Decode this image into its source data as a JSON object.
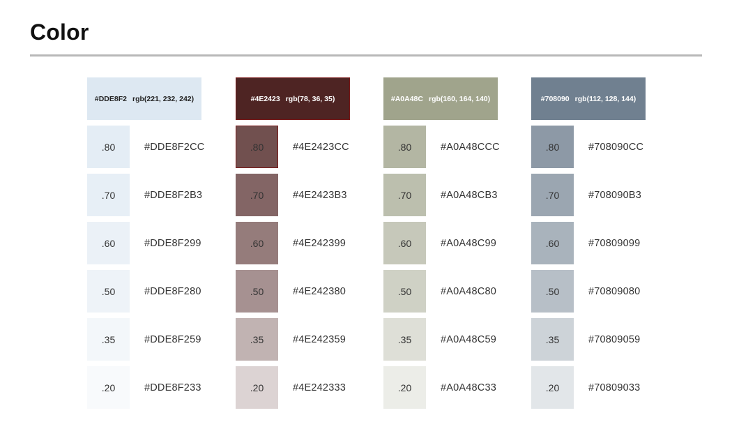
{
  "page": {
    "title": "Color"
  },
  "palettes": [
    {
      "hex": "#DDE8F2",
      "rgb": "rgb(221, 232, 242)",
      "color": "#DDE8F2",
      "header_text_color": "#222222",
      "swatches": [
        {
          "opacity_label": ".80",
          "opacity": 0.8,
          "hex": "#DDE8F2CC"
        },
        {
          "opacity_label": ".70",
          "opacity": 0.7,
          "hex": "#DDE8F2B3"
        },
        {
          "opacity_label": ".60",
          "opacity": 0.6,
          "hex": "#DDE8F299"
        },
        {
          "opacity_label": ".50",
          "opacity": 0.5,
          "hex": "#DDE8F280"
        },
        {
          "opacity_label": ".35",
          "opacity": 0.35,
          "hex": "#DDE8F259"
        },
        {
          "opacity_label": ".20",
          "opacity": 0.2,
          "hex": "#DDE8F233"
        }
      ]
    },
    {
      "hex": "#4E2423",
      "rgb": "rgb(78, 36, 35)",
      "color": "#4E2423",
      "header_text_color": "#ffffff",
      "swatches": [
        {
          "opacity_label": ".80",
          "opacity": 0.8,
          "hex": "#4E2423CC"
        },
        {
          "opacity_label": ".70",
          "opacity": 0.7,
          "hex": "#4E2423B3"
        },
        {
          "opacity_label": ".60",
          "opacity": 0.6,
          "hex": "#4E242399"
        },
        {
          "opacity_label": ".50",
          "opacity": 0.5,
          "hex": "#4E242380"
        },
        {
          "opacity_label": ".35",
          "opacity": 0.35,
          "hex": "#4E242359"
        },
        {
          "opacity_label": ".20",
          "opacity": 0.2,
          "hex": "#4E242333"
        }
      ]
    },
    {
      "hex": "#A0A48C",
      "rgb": "rgb(160, 164, 140)",
      "color": "#A0A48C",
      "header_text_color": "#ffffff",
      "swatches": [
        {
          "opacity_label": ".80",
          "opacity": 0.8,
          "hex": "#A0A48CCC"
        },
        {
          "opacity_label": ".70",
          "opacity": 0.7,
          "hex": "#A0A48CB3"
        },
        {
          "opacity_label": ".60",
          "opacity": 0.6,
          "hex": "#A0A48C99"
        },
        {
          "opacity_label": ".50",
          "opacity": 0.5,
          "hex": "#A0A48C80"
        },
        {
          "opacity_label": ".35",
          "opacity": 0.35,
          "hex": "#A0A48C59"
        },
        {
          "opacity_label": ".20",
          "opacity": 0.2,
          "hex": "#A0A48C33"
        }
      ]
    },
    {
      "hex": "#708090",
      "rgb": "rgb(112, 128, 144)",
      "color": "#708090",
      "header_text_color": "#ffffff",
      "swatches": [
        {
          "opacity_label": ".80",
          "opacity": 0.8,
          "hex": "#708090CC"
        },
        {
          "opacity_label": ".70",
          "opacity": 0.7,
          "hex": "#708090B3"
        },
        {
          "opacity_label": ".60",
          "opacity": 0.6,
          "hex": "#70809099"
        },
        {
          "opacity_label": ".50",
          "opacity": 0.5,
          "hex": "#70809080"
        },
        {
          "opacity_label": ".35",
          "opacity": 0.35,
          "hex": "#70809059"
        },
        {
          "opacity_label": ".20",
          "opacity": 0.2,
          "hex": "#70809033"
        }
      ]
    }
  ]
}
